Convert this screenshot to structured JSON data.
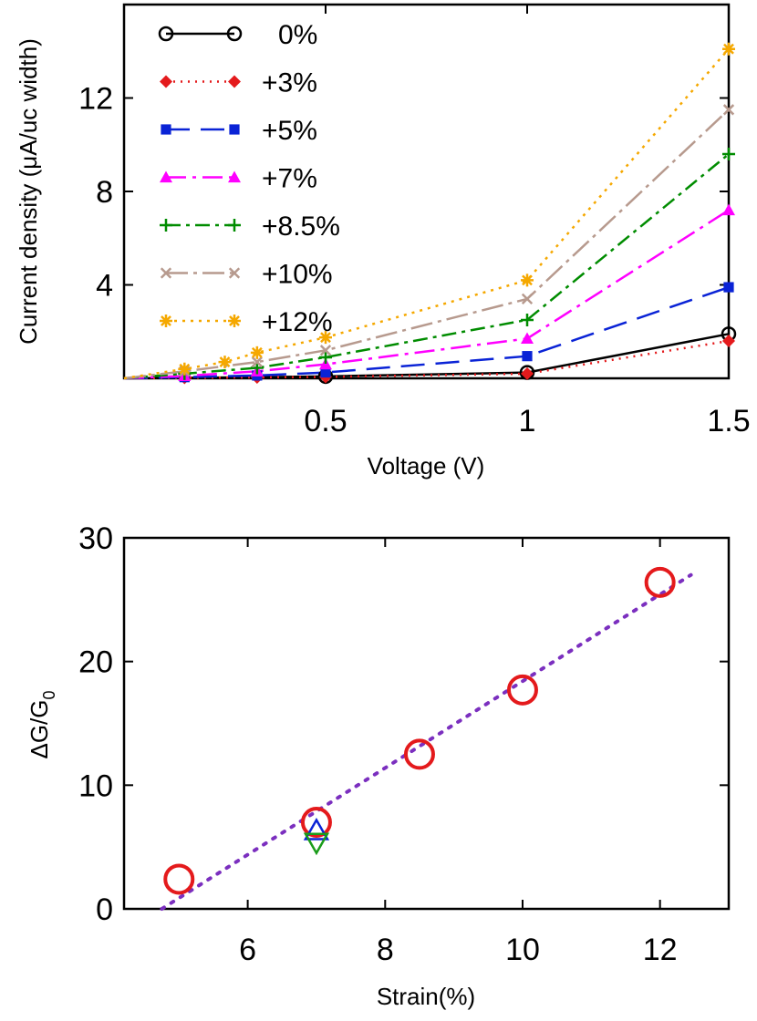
{
  "colors": {
    "black": "#000000",
    "red": "#e41a1c",
    "blue": "#0a23d6",
    "magenta": "#ff00ff",
    "green": "#008c00",
    "taupe": "#b79a8e",
    "orange": "#f5a800",
    "purple": "#7b2fbf",
    "green_tri": "#1a9c1a"
  },
  "chart_data": [
    {
      "type": "line",
      "xlabel": "Voltage (V)",
      "ylabel": "Current density (μA/uc width)",
      "xlim": [
        0,
        1.5
      ],
      "ylim": [
        0,
        16
      ],
      "xticks": [
        {
          "value": 0.5,
          "label": "0.5"
        },
        {
          "value": 1,
          "label": "1"
        },
        {
          "value": 1.5,
          "label": "1.5"
        }
      ],
      "yticks": [
        {
          "value": 4,
          "label": "4"
        },
        {
          "value": 8,
          "label": "8"
        },
        {
          "value": 12,
          "label": "12"
        }
      ],
      "legend_position": "top-left",
      "series": [
        {
          "name": "0%",
          "label": "0%",
          "color": "#000000",
          "marker": "circle-open",
          "dash": "",
          "points": [
            [
              0,
              0
            ],
            [
              0.15,
              0.02
            ],
            [
              0.33,
              0.05
            ],
            [
              0.5,
              0.08
            ],
            [
              1.0,
              0.25
            ],
            [
              1.5,
              1.9
            ]
          ],
          "marked": [
            false,
            false,
            false,
            true,
            true,
            true
          ]
        },
        {
          "name": "+3%",
          "label": "+3%",
          "color": "#e41a1c",
          "marker": "diamond",
          "dash": "2 6",
          "points": [
            [
              0,
              0
            ],
            [
              0.15,
              0.02
            ],
            [
              0.33,
              0.04
            ],
            [
              0.5,
              0.06
            ],
            [
              1.0,
              0.2
            ],
            [
              1.5,
              1.6
            ]
          ],
          "marked": [
            false,
            true,
            true,
            true,
            true,
            true
          ]
        },
        {
          "name": "+5%",
          "label": "+5%",
          "color": "#0a23d6",
          "marker": "square",
          "dash": "26 12",
          "points": [
            [
              0,
              0
            ],
            [
              0.15,
              0.05
            ],
            [
              0.33,
              0.12
            ],
            [
              0.5,
              0.25
            ],
            [
              1.0,
              0.95
            ],
            [
              1.5,
              3.9
            ]
          ],
          "marked": [
            false,
            true,
            true,
            true,
            true,
            true
          ]
        },
        {
          "name": "+7%",
          "label": "+7%",
          "color": "#ff00ff",
          "marker": "triangle",
          "dash": "22 7 4 7",
          "points": [
            [
              0,
              0
            ],
            [
              0.15,
              0.1
            ],
            [
              0.33,
              0.3
            ],
            [
              0.5,
              0.6
            ],
            [
              1.0,
              1.7
            ],
            [
              1.5,
              7.2
            ]
          ],
          "marked": [
            false,
            true,
            true,
            true,
            true,
            true
          ]
        },
        {
          "name": "+8.5%",
          "label": "+8.5%",
          "color": "#008c00",
          "marker": "plus",
          "dash": "16 6 4 6",
          "points": [
            [
              0,
              0
            ],
            [
              0.15,
              0.2
            ],
            [
              0.33,
              0.45
            ],
            [
              0.5,
              0.9
            ],
            [
              1.0,
              2.5
            ],
            [
              1.5,
              9.6
            ]
          ],
          "marked": [
            false,
            true,
            true,
            true,
            true,
            true
          ]
        },
        {
          "name": "+10%",
          "label": "+10%",
          "color": "#b79a8e",
          "marker": "cross",
          "dash": "24 6 4 6",
          "points": [
            [
              0,
              0
            ],
            [
              0.15,
              0.3
            ],
            [
              0.33,
              0.7
            ],
            [
              0.5,
              1.2
            ],
            [
              1.0,
              3.4
            ],
            [
              1.5,
              11.5
            ]
          ],
          "marked": [
            false,
            true,
            true,
            true,
            true,
            true
          ]
        },
        {
          "name": "+12%",
          "label": "+12%",
          "color": "#f5a800",
          "marker": "star",
          "dash": "3 6",
          "points": [
            [
              0,
              0
            ],
            [
              0.15,
              0.4
            ],
            [
              0.25,
              0.7
            ],
            [
              0.33,
              1.1
            ],
            [
              0.5,
              1.75
            ],
            [
              1.0,
              4.2
            ],
            [
              1.5,
              14.1
            ]
          ],
          "marked": [
            false,
            true,
            true,
            true,
            true,
            true,
            true
          ]
        }
      ]
    },
    {
      "type": "scatter",
      "xlabel": "Strain(%)",
      "ylabel": "ΔG/G",
      "ylabel_subscript": "0",
      "xlim": [
        4.2,
        13
      ],
      "ylim": [
        0,
        30
      ],
      "xticks": [
        {
          "value": 6,
          "label": "6"
        },
        {
          "value": 8,
          "label": "8"
        },
        {
          "value": 10,
          "label": "10"
        },
        {
          "value": 12,
          "label": "12"
        }
      ],
      "yticks": [
        {
          "value": 0,
          "label": "0"
        },
        {
          "value": 10,
          "label": "10"
        },
        {
          "value": 20,
          "label": "20"
        },
        {
          "value": 30,
          "label": "30"
        }
      ],
      "series": [
        {
          "name": "Strain data",
          "color": "#e41a1c",
          "marker": "circle-open",
          "x": [
            5,
            7,
            8.5,
            10,
            12
          ],
          "y": [
            2.4,
            7.0,
            12.5,
            17.7,
            26.4
          ]
        },
        {
          "name": "Triangle up",
          "color": "#0a23d6",
          "marker": "triangle-up-open",
          "x": [
            7
          ],
          "y": [
            6.3
          ]
        },
        {
          "name": "Triangle down",
          "color": "#1a9c1a",
          "marker": "triangle-down-open",
          "x": [
            7
          ],
          "y": [
            5.4
          ]
        }
      ],
      "fit_line": {
        "color": "#7b2fbf",
        "x": [
          4.75,
          12.45
        ],
        "y": [
          0,
          27.0
        ]
      }
    }
  ]
}
